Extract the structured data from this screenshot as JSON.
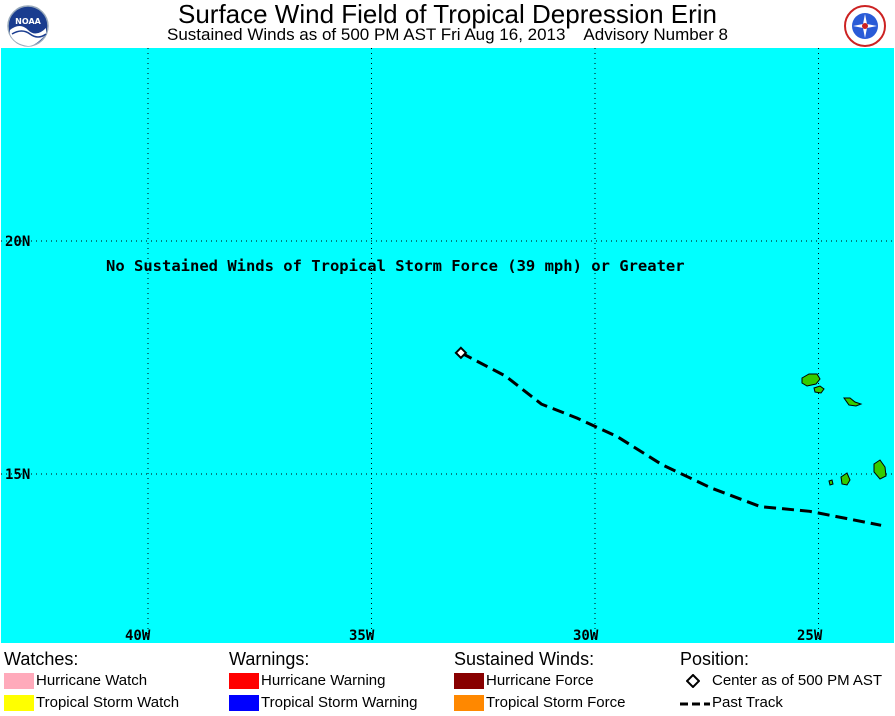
{
  "header": {
    "title": "Surface Wind Field of Tropical Depression Erin",
    "subtitle": "Sustained Winds as of 500 PM AST Fri Aug 16, 2013    Advisory Number 8",
    "logos": [
      "noaa-logo",
      "national-weather-service-logo"
    ]
  },
  "map": {
    "ocean_color": "#00ffff",
    "land_color": "#33cc00",
    "lat_labels": [
      "20N",
      "15N"
    ],
    "lon_labels": [
      "40W",
      "35W",
      "30W",
      "25W"
    ],
    "notice": "No Sustained Winds of Tropical Storm Force (39 mph) or Greater",
    "islands": "cabo-verde",
    "past_track": [
      {
        "lon": 33.0,
        "lat": 17.6
      },
      {
        "lon": 32.0,
        "lat": 17.1
      },
      {
        "lon": 31.2,
        "lat": 16.5
      },
      {
        "lon": 30.4,
        "lat": 16.2
      },
      {
        "lon": 29.5,
        "lat": 15.8
      },
      {
        "lon": 28.5,
        "lat": 15.2
      },
      {
        "lon": 27.4,
        "lat": 14.7
      },
      {
        "lon": 26.3,
        "lat": 14.3
      },
      {
        "lon": 25.2,
        "lat": 14.2
      },
      {
        "lon": 23.6,
        "lat": 13.9
      }
    ],
    "storm_center": {
      "lon": 33.0,
      "lat": 17.6
    }
  },
  "legend": {
    "watches": {
      "heading": "Watches:",
      "items": [
        {
          "label": "Hurricane Watch",
          "color": "#ffaabb"
        },
        {
          "label": "Tropical Storm Watch",
          "color": "#ffff00"
        }
      ]
    },
    "warnings": {
      "heading": "Warnings:",
      "items": [
        {
          "label": "Hurricane Warning",
          "color": "#ff0000"
        },
        {
          "label": "Tropical Storm Warning",
          "color": "#0000ff"
        }
      ]
    },
    "winds": {
      "heading": "Sustained Winds:",
      "items": [
        {
          "label": "Hurricane Force",
          "color": "#880000"
        },
        {
          "label": "Tropical Storm Force",
          "color": "#ff8800"
        }
      ]
    },
    "position": {
      "heading": "Position:",
      "center_label": "Center as of 500 PM AST",
      "track_label": "Past Track"
    }
  }
}
